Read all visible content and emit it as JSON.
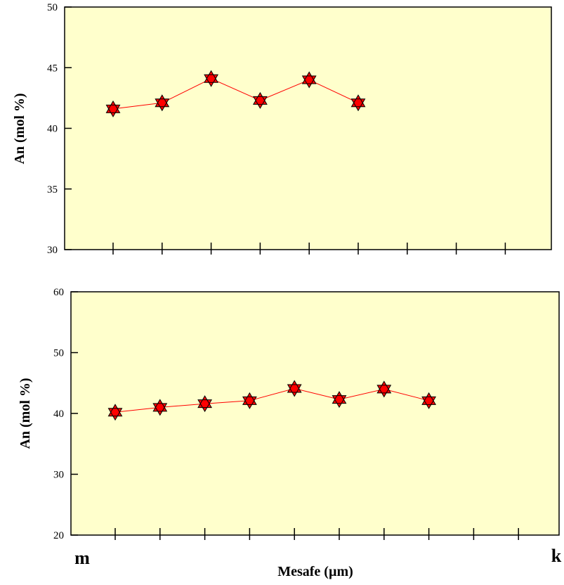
{
  "chart_data": [
    {
      "type": "line",
      "ylabel": "An (mol %)",
      "ylim": [
        30,
        50
      ],
      "yticks": [
        30,
        35,
        40,
        45,
        50
      ],
      "x_ticks_count": 9,
      "grid": false,
      "background_color": "#ffffcc",
      "line_color": "#ff0000",
      "marker": "star-of-david",
      "marker_fill": "#ff0000",
      "x": [
        1,
        2,
        3,
        4,
        5,
        6
      ],
      "values": [
        41.6,
        42.1,
        44.1,
        42.3,
        44.0,
        42.1
      ]
    },
    {
      "type": "line",
      "ylabel": "An (mol %)",
      "xlabel": "Mesafe (µm)",
      "ylim": [
        20,
        60
      ],
      "yticks": [
        20,
        30,
        40,
        50,
        60
      ],
      "x_ticks_count": 10,
      "grid": false,
      "background_color": "#ffffcc",
      "line_color": "#ff0000",
      "marker": "star-of-david",
      "marker_fill": "#ff0000",
      "x": [
        1,
        2,
        3,
        4,
        5,
        6,
        7,
        8
      ],
      "values": [
        40.2,
        41.0,
        41.6,
        42.1,
        44.1,
        42.3,
        44.0,
        42.1
      ],
      "x_start_label": "m",
      "x_end_label": "k"
    }
  ]
}
